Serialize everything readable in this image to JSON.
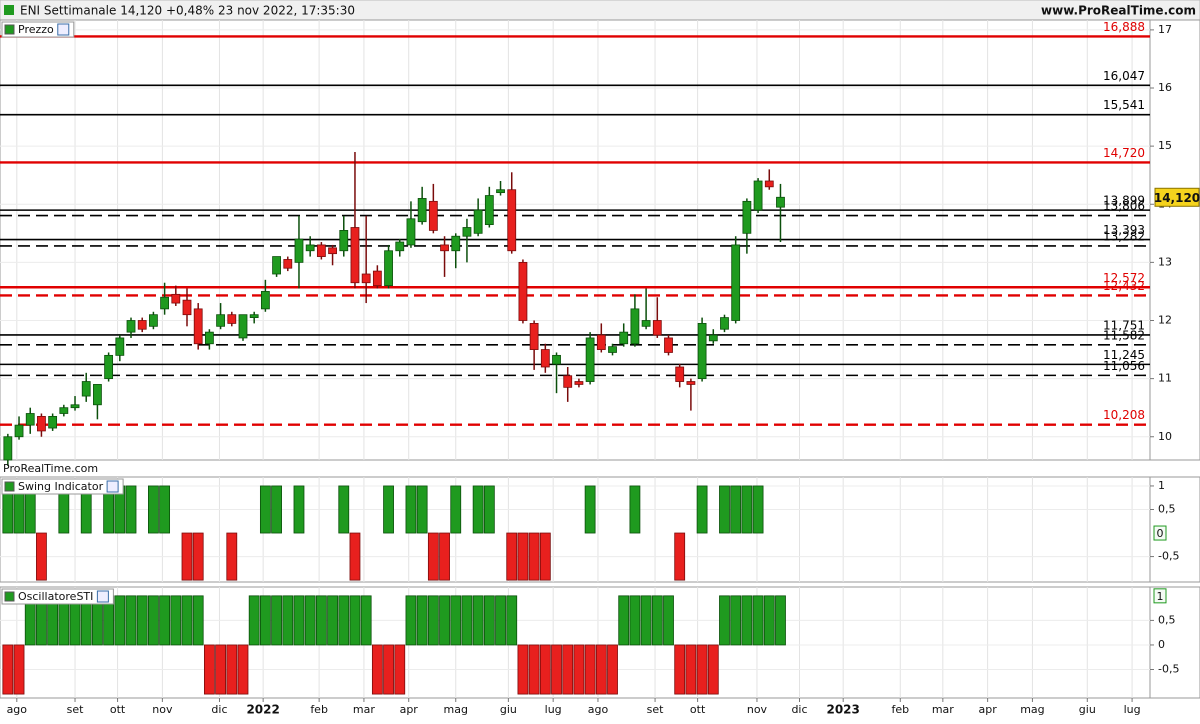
{
  "header": {
    "title": "ENI Settimanale 14,120 +0,48% 23 nov 2022, 17:35:30",
    "site": "www.ProRealTime.com",
    "watermark": "ProRealTime.com"
  },
  "chart_data": [
    {
      "type": "candlestick",
      "title": "Prezzo",
      "up_color": "#1f9a1f",
      "down_color": "#e8201e",
      "candles": {
        "open": [
          9.6,
          10.0,
          10.2,
          10.35,
          10.15,
          10.4,
          10.5,
          10.7,
          10.55,
          11.0,
          11.4,
          11.8,
          12.0,
          11.9,
          12.2,
          12.45,
          12.35,
          12.2,
          11.6,
          11.9,
          12.1,
          11.7,
          12.05,
          12.2,
          12.8,
          13.05,
          13.0,
          13.2,
          13.3,
          13.25,
          13.2,
          13.6,
          12.8,
          12.85,
          12.6,
          13.2,
          13.3,
          13.7,
          14.05,
          13.3,
          13.2,
          13.45,
          13.5,
          13.65,
          14.2,
          14.25,
          13.0,
          11.95,
          11.5,
          11.25,
          11.05,
          10.95,
          10.95,
          11.75,
          11.45,
          11.6,
          11.6,
          11.9,
          12.0,
          11.7,
          11.2,
          10.95,
          11.0,
          11.65,
          11.85,
          12.0,
          13.5,
          13.9,
          14.4,
          13.95
        ],
        "high": [
          10.05,
          10.35,
          10.5,
          10.4,
          10.4,
          10.55,
          10.7,
          11.1,
          10.9,
          11.45,
          11.75,
          12.05,
          12.05,
          12.15,
          12.65,
          12.6,
          12.55,
          12.3,
          11.85,
          12.3,
          12.15,
          12.1,
          12.15,
          12.7,
          13.1,
          13.1,
          13.8,
          13.45,
          13.35,
          13.3,
          13.8,
          14.9,
          13.8,
          12.95,
          13.3,
          13.4,
          14.05,
          14.3,
          14.35,
          13.45,
          13.5,
          13.75,
          14.1,
          14.3,
          14.4,
          14.55,
          13.05,
          12.0,
          11.6,
          11.45,
          11.2,
          11.0,
          11.8,
          11.95,
          11.6,
          11.95,
          12.45,
          12.55,
          12.4,
          11.75,
          11.25,
          11.0,
          12.05,
          11.85,
          12.1,
          13.45,
          14.1,
          14.45,
          14.6,
          14.35
        ],
        "low": [
          9.5,
          9.95,
          10.05,
          10.0,
          10.1,
          10.35,
          10.45,
          10.6,
          10.3,
          10.95,
          11.3,
          11.7,
          11.8,
          11.85,
          12.1,
          12.25,
          11.9,
          11.5,
          11.5,
          11.85,
          11.9,
          11.65,
          11.95,
          12.15,
          12.75,
          12.85,
          12.55,
          13.1,
          13.05,
          12.95,
          13.1,
          12.55,
          12.3,
          12.55,
          12.55,
          13.1,
          13.25,
          13.65,
          13.5,
          12.75,
          12.9,
          13.0,
          13.45,
          13.6,
          14.15,
          13.15,
          11.95,
          11.15,
          11.1,
          10.75,
          10.6,
          10.85,
          10.9,
          11.45,
          11.4,
          11.55,
          11.55,
          11.85,
          11.7,
          11.4,
          10.85,
          10.45,
          10.95,
          11.6,
          11.8,
          11.95,
          13.15,
          13.85,
          14.25,
          13.35
        ],
        "close": [
          10.0,
          10.2,
          10.4,
          10.1,
          10.35,
          10.5,
          10.55,
          10.95,
          10.9,
          11.4,
          11.7,
          12.0,
          11.85,
          12.1,
          12.4,
          12.3,
          12.1,
          11.6,
          11.8,
          12.1,
          11.95,
          12.1,
          12.1,
          12.5,
          13.1,
          12.9,
          13.4,
          13.3,
          13.1,
          13.15,
          13.55,
          12.65,
          12.65,
          12.6,
          13.2,
          13.35,
          13.75,
          14.1,
          13.55,
          13.2,
          13.45,
          13.6,
          13.9,
          14.15,
          14.25,
          13.2,
          12.0,
          11.5,
          11.2,
          11.4,
          10.85,
          10.9,
          11.7,
          11.5,
          11.55,
          11.8,
          12.2,
          12.0,
          11.75,
          11.45,
          10.95,
          10.9,
          11.95,
          11.75,
          12.05,
          13.3,
          14.05,
          14.4,
          14.3,
          14.12
        ]
      },
      "levels": [
        {
          "value": 16.888,
          "label": "16,888",
          "color": "#e00000",
          "dashed": false
        },
        {
          "value": 16.047,
          "label": "16,047",
          "color": "#000000",
          "dashed": false
        },
        {
          "value": 15.541,
          "label": "15,541",
          "color": "#000000",
          "dashed": false
        },
        {
          "value": 14.72,
          "label": "14,720",
          "color": "#e00000",
          "dashed": false
        },
        {
          "value": 13.899,
          "label": "13,899",
          "color": "#000000",
          "dashed": false
        },
        {
          "value": 13.806,
          "label": "13,806",
          "color": "#000000",
          "dashed": true
        },
        {
          "value": 13.393,
          "label": "13,393",
          "color": "#000000",
          "dashed": false
        },
        {
          "value": 13.282,
          "label": "13,282",
          "color": "#000000",
          "dashed": true
        },
        {
          "value": 12.572,
          "label": "12,572",
          "color": "#e00000",
          "dashed": false
        },
        {
          "value": 12.432,
          "label": "12,432",
          "color": "#e00000",
          "dashed": true
        },
        {
          "value": 11.751,
          "label": "11,751",
          "color": "#000000",
          "dashed": false
        },
        {
          "value": 11.582,
          "label": "11,582",
          "color": "#000000",
          "dashed": true
        },
        {
          "value": 11.245,
          "label": "11,245",
          "color": "#000000",
          "dashed": false
        },
        {
          "value": 11.056,
          "label": "11,056",
          "color": "#000000",
          "dashed": true
        },
        {
          "value": 10.208,
          "label": "10,208",
          "color": "#e00000",
          "dashed": true
        }
      ],
      "last": {
        "value": 14.12,
        "label": "14,120"
      },
      "ylim": [
        9.6,
        17.17
      ],
      "yticks": [
        10,
        11,
        12,
        13,
        14,
        15,
        16,
        17
      ],
      "xlim": [
        -0.7,
        102
      ],
      "xticks": [
        {
          "value": 0.8,
          "label": "ago"
        },
        {
          "value": 6.0,
          "label": "set"
        },
        {
          "value": 9.8,
          "label": "ott"
        },
        {
          "value": 13.8,
          "label": "nov"
        },
        {
          "value": 18.9,
          "label": "dic"
        },
        {
          "value": 22.8,
          "label": "2022"
        },
        {
          "value": 27.8,
          "label": "feb"
        },
        {
          "value": 31.8,
          "label": "mar"
        },
        {
          "value": 35.8,
          "label": "apr"
        },
        {
          "value": 40.0,
          "label": "mag"
        },
        {
          "value": 44.7,
          "label": "giu"
        },
        {
          "value": 48.7,
          "label": "lug"
        },
        {
          "value": 52.7,
          "label": "ago"
        },
        {
          "value": 57.8,
          "label": "set"
        },
        {
          "value": 61.6,
          "label": "ott"
        },
        {
          "value": 66.9,
          "label": "nov"
        },
        {
          "value": 70.7,
          "label": "dic"
        },
        {
          "value": 74.6,
          "label": "2023"
        },
        {
          "value": 79.7,
          "label": "feb"
        },
        {
          "value": 83.5,
          "label": "mar"
        },
        {
          "value": 87.5,
          "label": "apr"
        },
        {
          "value": 91.5,
          "label": "mag"
        },
        {
          "value": 96.4,
          "label": "giu"
        },
        {
          "value": 100.4,
          "label": "lug"
        }
      ]
    },
    {
      "type": "bar",
      "title": "Swing Indicator",
      "up_color": "#1f9a1f",
      "down_color": "#e8201e",
      "values": [
        1,
        1,
        1,
        -1,
        0,
        1,
        0,
        1,
        0,
        1,
        1,
        1,
        0,
        1,
        1,
        0,
        -1,
        -1,
        0,
        0,
        -1,
        0,
        0,
        1,
        1,
        0,
        1,
        0,
        0,
        0,
        1,
        -1,
        0,
        0,
        1,
        0,
        1,
        1,
        -1,
        -1,
        1,
        0,
        1,
        1,
        0,
        -1,
        -1,
        -1,
        -1,
        0,
        0,
        0,
        1,
        0,
        0,
        0,
        1,
        0,
        0,
        0,
        -1,
        0,
        1,
        0,
        1,
        1,
        1,
        1,
        0,
        0
      ],
      "last": 0,
      "ylim": [
        -1.04,
        1.19
      ],
      "yticks": [
        1,
        {
          "value": 0.5,
          "label": "0,5"
        },
        {
          "value": -0.5,
          "label": "-0,5"
        }
      ]
    },
    {
      "type": "bar",
      "title": "OscillatoreSTI",
      "up_color": "#1f9a1f",
      "down_color": "#e8201e",
      "values": [
        -1,
        -1,
        1,
        1,
        1,
        1,
        1,
        1,
        1,
        1,
        1,
        1,
        1,
        1,
        1,
        1,
        1,
        1,
        -1,
        -1,
        -1,
        -1,
        1,
        1,
        1,
        1,
        1,
        1,
        1,
        1,
        1,
        1,
        1,
        -1,
        -1,
        -1,
        1,
        1,
        1,
        1,
        1,
        1,
        1,
        1,
        1,
        1,
        -1,
        -1,
        -1,
        -1,
        -1,
        -1,
        -1,
        -1,
        -1,
        1,
        1,
        1,
        1,
        1,
        -1,
        -1,
        -1,
        -1,
        1,
        1,
        1,
        1,
        1,
        1
      ],
      "last": 1,
      "ylim": [
        -1.08,
        1.18
      ],
      "yticks": [
        {
          "value": 0.5,
          "label": "0,5"
        },
        0,
        {
          "value": -0.5,
          "label": "-0,5"
        }
      ]
    }
  ]
}
